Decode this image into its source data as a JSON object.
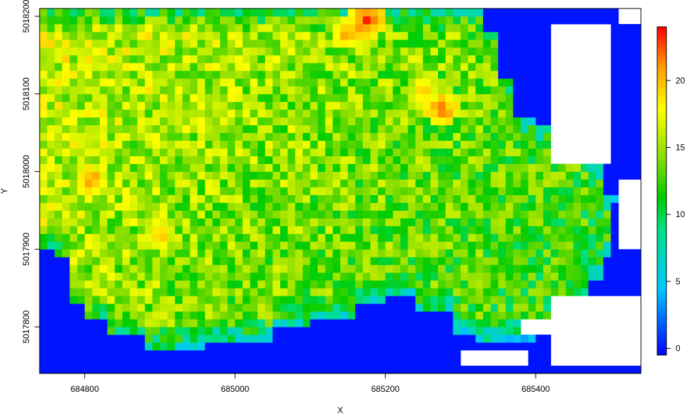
{
  "chart_data": {
    "type": "heatmap",
    "title": "",
    "xlabel": "X",
    "ylabel": "Y",
    "xlim": [
      684740,
      685540
    ],
    "ylim": [
      5017740,
      5018210
    ],
    "x_ticks": [
      {
        "value": 684800,
        "label": "684800"
      },
      {
        "value": 685000,
        "label": "685000"
      },
      {
        "value": 685200,
        "label": "685200"
      },
      {
        "value": 685400,
        "label": "685400"
      }
    ],
    "y_ticks": [
      {
        "value": 5017800,
        "label": "5017800"
      },
      {
        "value": 5017900,
        "label": "5017900"
      },
      {
        "value": 5018000,
        "label": "5018000"
      },
      {
        "value": 5018100,
        "label": "5018100"
      },
      {
        "value": 5018200,
        "label": "5018200"
      }
    ],
    "colorbar": {
      "range": [
        -0.5,
        24
      ],
      "ticks": [
        {
          "value": 0,
          "label": "0"
        },
        {
          "value": 5,
          "label": "5"
        },
        {
          "value": 10,
          "label": "10"
        },
        {
          "value": 15,
          "label": "15"
        },
        {
          "value": 20,
          "label": "20"
        }
      ],
      "colors": [
        "#0000FF",
        "#00C6FF",
        "#00E08A",
        "#00CC00",
        "#88DD00",
        "#FFFF00",
        "#FF9900",
        "#FF0000"
      ],
      "stops": [
        0,
        0.2,
        0.38,
        0.48,
        0.6,
        0.75,
        0.88,
        1
      ]
    },
    "grid": false,
    "legend": "right",
    "cell_size": [
      10,
      10
    ],
    "value_description": "grid of cell values 0-24; blue (0) background outside survey area, white = no data",
    "regions": [
      {
        "kind": "zero",
        "note": "bottom and left water area values ≈ 0"
      },
      {
        "kind": "nodata",
        "note": "white cells top-right and bottom-right"
      }
    ],
    "hotspots": [
      {
        "x": 685175,
        "y": 5018195,
        "value": 23
      },
      {
        "x": 685275,
        "y": 5018080,
        "value": 22
      },
      {
        "x": 684810,
        "y": 5017990,
        "value": 21
      },
      {
        "x": 684900,
        "y": 5017920,
        "value": 20
      },
      {
        "x": 685250,
        "y": 5018100,
        "value": 20
      },
      {
        "x": 685150,
        "y": 5018180,
        "value": 21
      }
    ]
  }
}
